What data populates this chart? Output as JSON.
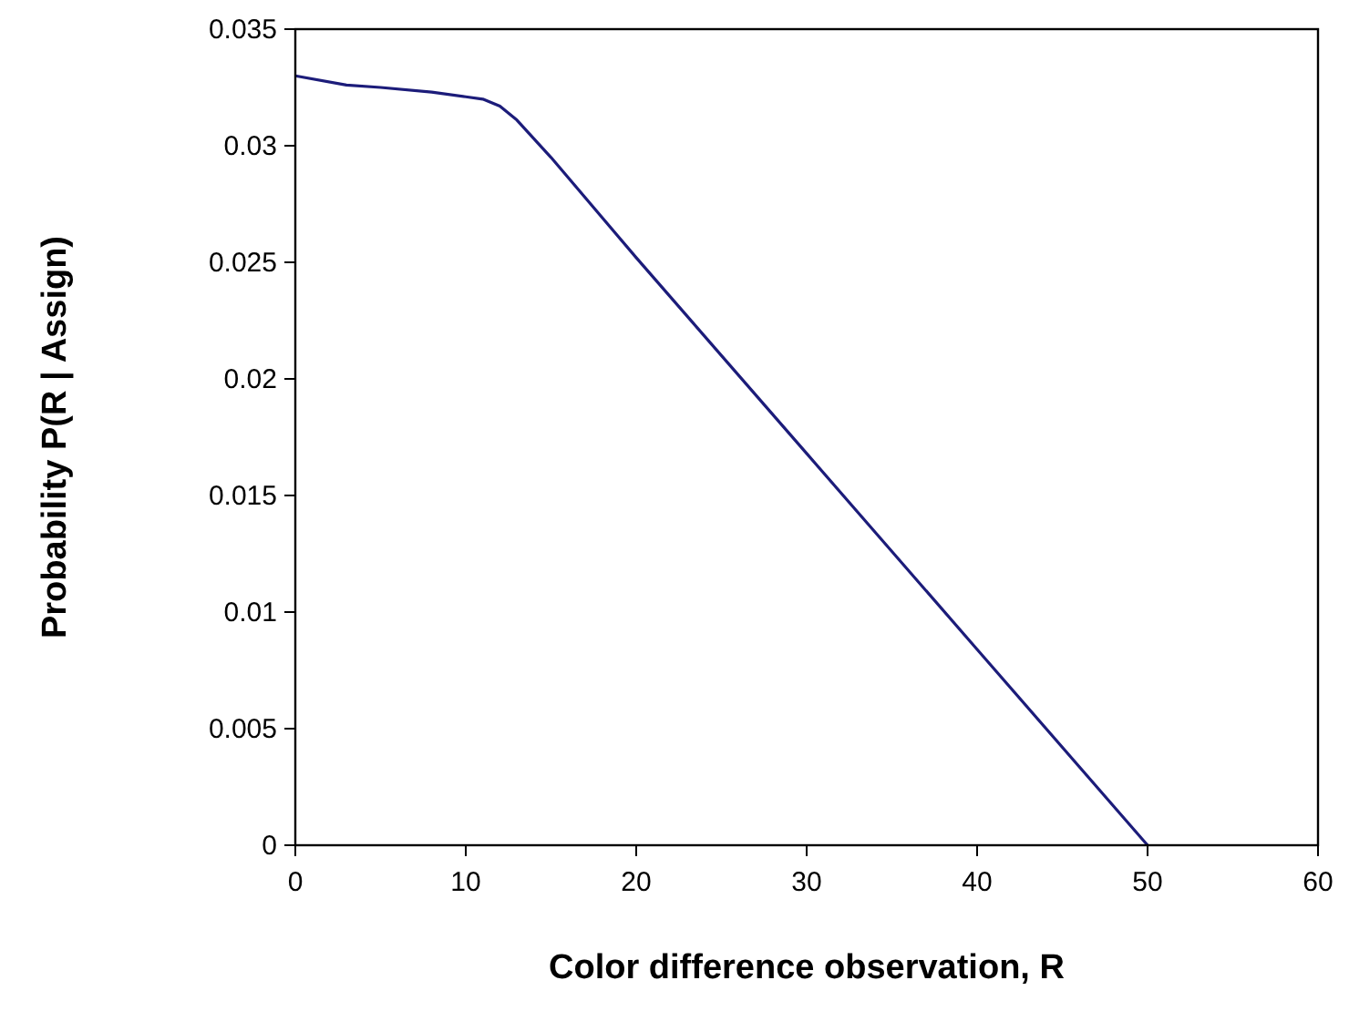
{
  "chart_data": {
    "type": "line",
    "xlabel": "Color difference observation, R",
    "ylabel": "Probability P(R | Assign)",
    "xlim": [
      0,
      60
    ],
    "xticks": [
      0,
      10,
      20,
      30,
      40,
      50,
      60
    ],
    "ylim": [
      0,
      0.035
    ],
    "yticks": [
      0,
      0.005,
      0.01,
      0.015,
      0.02,
      0.025,
      0.03,
      0.035
    ],
    "grid": false,
    "marker": "none",
    "line_style": "solid",
    "series": [
      {
        "color": "#1c1c7a",
        "x": [
          0,
          3,
          5,
          8,
          10,
          11,
          12,
          13,
          15,
          20,
          30,
          40,
          50
        ],
        "values": [
          0.033,
          0.0326,
          0.0325,
          0.0323,
          0.0321,
          0.032,
          0.0317,
          0.0311,
          0.0295,
          0.0252,
          0.0168,
          0.0084,
          0
        ]
      }
    ]
  }
}
